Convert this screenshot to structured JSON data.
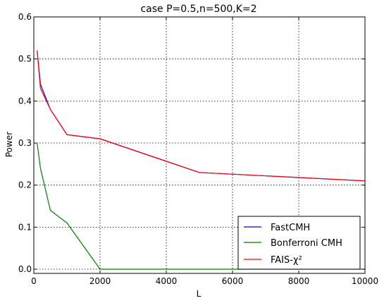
{
  "chart_data": {
    "type": "line",
    "title": "case P=0.5,n=500,K=2",
    "xlabel": "L",
    "ylabel": "Power",
    "xlim": [
      0,
      10000
    ],
    "ylim": [
      -0.01,
      0.6
    ],
    "xticks": [
      0,
      2000,
      4000,
      6000,
      8000,
      10000
    ],
    "xtick_labels": [
      "0",
      "2000",
      "4000",
      "6000",
      "8000",
      "10000"
    ],
    "yticks": [
      0.0,
      0.1,
      0.2,
      0.3,
      0.4,
      0.5,
      0.6
    ],
    "ytick_labels": [
      "0.0",
      "0.1",
      "0.2",
      "0.3",
      "0.4",
      "0.5",
      "0.6"
    ],
    "grid": true,
    "legend_position": "bottom-right",
    "series": [
      {
        "name": "FastCMH",
        "color": "#0000ff",
        "x": [
          100,
          200,
          500,
          1000,
          2000,
          5000,
          10000
        ],
        "y": [
          0.52,
          0.44,
          0.38,
          0.32,
          0.31,
          0.23,
          0.21
        ]
      },
      {
        "name": "Bonferroni CMH",
        "color": "#008000",
        "x": [
          100,
          200,
          500,
          1000,
          2000,
          5000,
          10000
        ],
        "y": [
          0.3,
          0.24,
          0.14,
          0.11,
          0.0,
          0.0,
          0.0
        ]
      },
      {
        "name": "FAIS-χ²",
        "color": "#ff0000",
        "x": [
          100,
          200,
          500,
          1000,
          2000,
          5000,
          10000
        ],
        "y": [
          0.52,
          0.43,
          0.38,
          0.32,
          0.31,
          0.23,
          0.21
        ]
      }
    ]
  }
}
